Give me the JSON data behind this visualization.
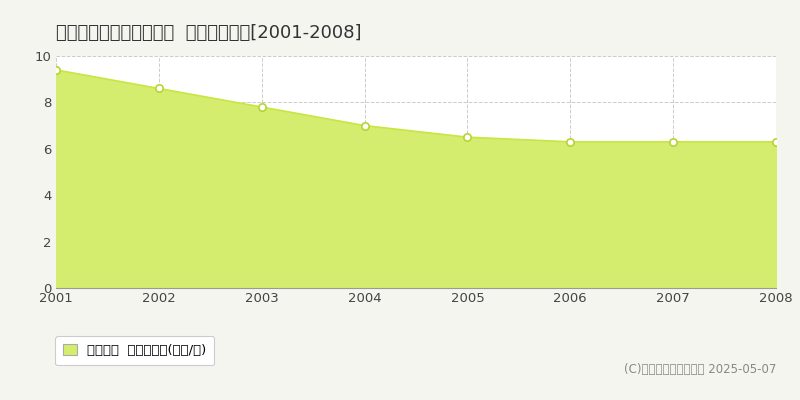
{
  "title": "北葛飾郡杉戸町佐左エ門  基準地価推移[2001-2008]",
  "years": [
    2001,
    2002,
    2003,
    2004,
    2005,
    2006,
    2007,
    2008
  ],
  "values": [
    9.4,
    8.6,
    7.8,
    7.0,
    6.5,
    6.3,
    6.3,
    6.3
  ],
  "ylim": [
    0,
    10
  ],
  "yticks": [
    0,
    2,
    4,
    6,
    8,
    10
  ],
  "line_color": "#c8e642",
  "fill_color": "#d4ed6e",
  "marker_facecolor": "#ffffff",
  "marker_edgecolor": "#b8d430",
  "bg_color": "#f5f5f0",
  "plot_bg_color": "#ffffff",
  "grid_color": "#cccccc",
  "legend_label": "基準地価  平均坪単価(万円/坪)",
  "copyright_text": "(C)土地価格ドットコム 2025-05-07",
  "title_fontsize": 13,
  "tick_fontsize": 9.5,
  "legend_fontsize": 9.5,
  "copyright_fontsize": 8.5
}
